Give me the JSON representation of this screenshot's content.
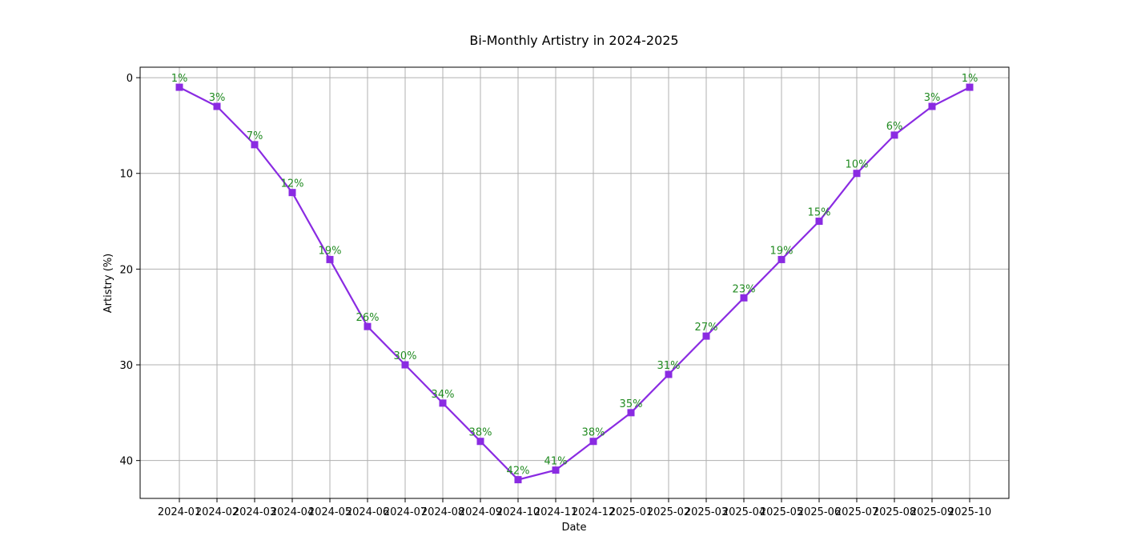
{
  "chart_data": {
    "type": "line",
    "title": "Bi-Monthly Artistry in 2024-2025",
    "xlabel": "Date",
    "ylabel": "Artistry (%)",
    "x": [
      "2024-01",
      "2024-02",
      "2024-03",
      "2024-04",
      "2024-05",
      "2024-06",
      "2024-07",
      "2024-08",
      "2024-09",
      "2024-10",
      "2024-11",
      "2024-12",
      "2025-01",
      "2025-02",
      "2025-03",
      "2025-04",
      "2025-05",
      "2025-06",
      "2025-07",
      "2025-08",
      "2025-09",
      "2025-10"
    ],
    "series": [
      {
        "values": [
          1,
          3,
          7,
          12,
          19,
          26,
          30,
          34,
          38,
          42,
          41,
          38,
          35,
          31,
          27,
          23,
          19,
          15,
          10,
          6,
          3,
          1
        ],
        "data_labels": [
          "1%",
          "3%",
          "7%",
          "12%",
          "19%",
          "26%",
          "30%",
          "34%",
          "38%",
          "42%",
          "41%",
          "38%",
          "35%",
          "31%",
          "27%",
          "23%",
          "19%",
          "15%",
          "10%",
          "6%",
          "3%",
          "1%"
        ],
        "color": "#8a2be2",
        "marker": "square"
      }
    ],
    "ylim": [
      44,
      0
    ],
    "y_inverted": true,
    "yticks": [
      "0",
      "10",
      "20",
      "30",
      "40"
    ],
    "grid": true,
    "data_label_color": "#228b22"
  }
}
